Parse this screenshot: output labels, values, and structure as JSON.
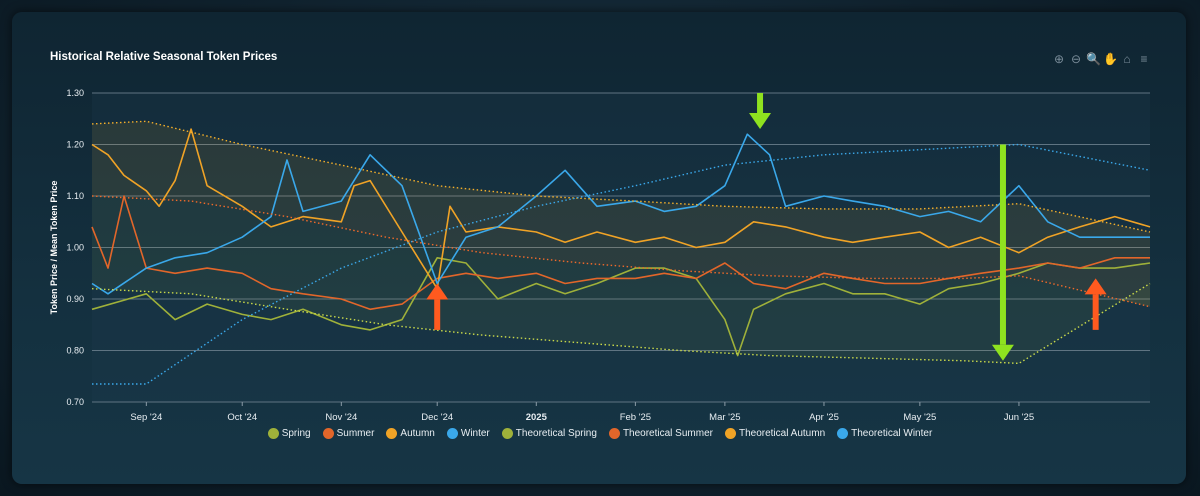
{
  "title": "Historical Relative Seasonal Token Prices",
  "toolbar": {
    "icons": [
      "zoom-in-icon",
      "zoom-out-icon",
      "zoom-select-icon",
      "pan-hand-icon",
      "home-reset-icon",
      "menu-icon"
    ],
    "glyphs": [
      "⊕",
      "⊖",
      "🔍",
      "✋",
      "⌂",
      "≡"
    ]
  },
  "chart_data": {
    "type": "line",
    "title": "Historical Relative Seasonal Token Prices",
    "xlabel": "",
    "ylabel": "Token Price / Mean Token Price",
    "ylim": [
      0.7,
      1.3
    ],
    "y_ticks": [
      "0.70",
      "0.80",
      "0.90",
      "1.00",
      "1.10",
      "1.20",
      "1.30"
    ],
    "x_range": [
      "2024-08-15",
      "2025-07-12"
    ],
    "x_ticks": [
      {
        "label": "Sep '24",
        "date": "2024-09-01",
        "bold": false
      },
      {
        "label": "Oct '24",
        "date": "2024-10-01",
        "bold": false
      },
      {
        "label": "Nov '24",
        "date": "2024-11-01",
        "bold": false
      },
      {
        "label": "Dec '24",
        "date": "2024-12-01",
        "bold": false
      },
      {
        "label": "2025",
        "date": "2025-01-01",
        "bold": true
      },
      {
        "label": "Feb '25",
        "date": "2025-02-01",
        "bold": false
      },
      {
        "label": "Mar '25",
        "date": "2025-03-01",
        "bold": false
      },
      {
        "label": "Apr '25",
        "date": "2025-04-01",
        "bold": false
      },
      {
        "label": "May '25",
        "date": "2025-05-01",
        "bold": false
      },
      {
        "label": "Jun '25",
        "date": "2025-06-01",
        "bold": false
      }
    ],
    "grid": true,
    "legend_position": "bottom",
    "series": [
      {
        "name": "Spring",
        "color": "#9fb13a",
        "style": "solid",
        "points": [
          [
            "2024-08-15",
            0.88
          ],
          [
            "2024-09-01",
            0.91
          ],
          [
            "2024-09-10",
            0.86
          ],
          [
            "2024-09-20",
            0.89
          ],
          [
            "2024-10-01",
            0.87
          ],
          [
            "2024-10-10",
            0.86
          ],
          [
            "2024-10-20",
            0.88
          ],
          [
            "2024-11-01",
            0.85
          ],
          [
            "2024-11-10",
            0.84
          ],
          [
            "2024-11-20",
            0.86
          ],
          [
            "2024-12-01",
            0.98
          ],
          [
            "2024-12-10",
            0.97
          ],
          [
            "2024-12-20",
            0.9
          ],
          [
            "2025-01-01",
            0.93
          ],
          [
            "2025-01-10",
            0.91
          ],
          [
            "2025-01-20",
            0.93
          ],
          [
            "2025-02-01",
            0.96
          ],
          [
            "2025-02-10",
            0.96
          ],
          [
            "2025-02-20",
            0.94
          ],
          [
            "2025-03-01",
            0.86
          ],
          [
            "2025-03-05",
            0.79
          ],
          [
            "2025-03-10",
            0.88
          ],
          [
            "2025-03-20",
            0.91
          ],
          [
            "2025-04-01",
            0.93
          ],
          [
            "2025-04-10",
            0.91
          ],
          [
            "2025-04-20",
            0.91
          ],
          [
            "2025-05-01",
            0.89
          ],
          [
            "2025-05-10",
            0.92
          ],
          [
            "2025-05-20",
            0.93
          ],
          [
            "2025-06-01",
            0.95
          ],
          [
            "2025-06-10",
            0.97
          ],
          [
            "2025-06-20",
            0.96
          ],
          [
            "2025-07-01",
            0.96
          ],
          [
            "2025-07-12",
            0.97
          ]
        ]
      },
      {
        "name": "Summer",
        "color": "#e2662a",
        "style": "solid",
        "points": [
          [
            "2024-08-15",
            1.04
          ],
          [
            "2024-08-20",
            0.96
          ],
          [
            "2024-08-25",
            1.1
          ],
          [
            "2024-09-01",
            0.96
          ],
          [
            "2024-09-10",
            0.95
          ],
          [
            "2024-09-20",
            0.96
          ],
          [
            "2024-10-01",
            0.95
          ],
          [
            "2024-10-10",
            0.92
          ],
          [
            "2024-10-20",
            0.91
          ],
          [
            "2024-11-01",
            0.9
          ],
          [
            "2024-11-10",
            0.88
          ],
          [
            "2024-11-20",
            0.89
          ],
          [
            "2024-12-01",
            0.94
          ],
          [
            "2024-12-10",
            0.95
          ],
          [
            "2024-12-20",
            0.94
          ],
          [
            "2025-01-01",
            0.95
          ],
          [
            "2025-01-10",
            0.93
          ],
          [
            "2025-01-20",
            0.94
          ],
          [
            "2025-02-01",
            0.94
          ],
          [
            "2025-02-10",
            0.95
          ],
          [
            "2025-02-20",
            0.94
          ],
          [
            "2025-03-01",
            0.97
          ],
          [
            "2025-03-10",
            0.93
          ],
          [
            "2025-03-20",
            0.92
          ],
          [
            "2025-04-01",
            0.95
          ],
          [
            "2025-04-10",
            0.94
          ],
          [
            "2025-04-20",
            0.93
          ],
          [
            "2025-05-01",
            0.93
          ],
          [
            "2025-05-10",
            0.94
          ],
          [
            "2025-05-20",
            0.95
          ],
          [
            "2025-06-01",
            0.96
          ],
          [
            "2025-06-10",
            0.97
          ],
          [
            "2025-06-20",
            0.96
          ],
          [
            "2025-07-01",
            0.98
          ],
          [
            "2025-07-12",
            0.98
          ]
        ]
      },
      {
        "name": "Autumn",
        "color": "#f0a326",
        "style": "solid",
        "points": [
          [
            "2024-08-15",
            1.2
          ],
          [
            "2024-08-20",
            1.18
          ],
          [
            "2024-08-25",
            1.14
          ],
          [
            "2024-09-01",
            1.11
          ],
          [
            "2024-09-05",
            1.08
          ],
          [
            "2024-09-10",
            1.13
          ],
          [
            "2024-09-15",
            1.23
          ],
          [
            "2024-09-20",
            1.12
          ],
          [
            "2024-10-01",
            1.08
          ],
          [
            "2024-10-10",
            1.04
          ],
          [
            "2024-10-20",
            1.06
          ],
          [
            "2024-11-01",
            1.05
          ],
          [
            "2024-11-05",
            1.12
          ],
          [
            "2024-11-10",
            1.13
          ],
          [
            "2024-11-20",
            1.03
          ],
          [
            "2024-12-01",
            0.92
          ],
          [
            "2024-12-05",
            1.08
          ],
          [
            "2024-12-10",
            1.03
          ],
          [
            "2024-12-20",
            1.04
          ],
          [
            "2025-01-01",
            1.03
          ],
          [
            "2025-01-10",
            1.01
          ],
          [
            "2025-01-20",
            1.03
          ],
          [
            "2025-02-01",
            1.01
          ],
          [
            "2025-02-10",
            1.02
          ],
          [
            "2025-02-20",
            1.0
          ],
          [
            "2025-03-01",
            1.01
          ],
          [
            "2025-03-10",
            1.05
          ],
          [
            "2025-03-20",
            1.04
          ],
          [
            "2025-04-01",
            1.02
          ],
          [
            "2025-04-10",
            1.01
          ],
          [
            "2025-04-20",
            1.02
          ],
          [
            "2025-05-01",
            1.03
          ],
          [
            "2025-05-10",
            1.0
          ],
          [
            "2025-05-20",
            1.02
          ],
          [
            "2025-06-01",
            0.99
          ],
          [
            "2025-06-10",
            1.02
          ],
          [
            "2025-06-20",
            1.04
          ],
          [
            "2025-07-01",
            1.06
          ],
          [
            "2025-07-12",
            1.04
          ]
        ]
      },
      {
        "name": "Winter",
        "color": "#3aa8ea",
        "style": "solid",
        "points": [
          [
            "2024-08-15",
            0.93
          ],
          [
            "2024-08-20",
            0.91
          ],
          [
            "2024-09-01",
            0.96
          ],
          [
            "2024-09-10",
            0.98
          ],
          [
            "2024-09-20",
            0.99
          ],
          [
            "2024-10-01",
            1.02
          ],
          [
            "2024-10-10",
            1.06
          ],
          [
            "2024-10-15",
            1.17
          ],
          [
            "2024-10-20",
            1.07
          ],
          [
            "2024-11-01",
            1.09
          ],
          [
            "2024-11-10",
            1.18
          ],
          [
            "2024-11-20",
            1.12
          ],
          [
            "2024-12-01",
            0.93
          ],
          [
            "2024-12-10",
            1.02
          ],
          [
            "2024-12-20",
            1.04
          ],
          [
            "2025-01-01",
            1.1
          ],
          [
            "2025-01-10",
            1.15
          ],
          [
            "2025-01-20",
            1.08
          ],
          [
            "2025-02-01",
            1.09
          ],
          [
            "2025-02-10",
            1.07
          ],
          [
            "2025-02-20",
            1.08
          ],
          [
            "2025-03-01",
            1.12
          ],
          [
            "2025-03-08",
            1.22
          ],
          [
            "2025-03-15",
            1.18
          ],
          [
            "2025-03-20",
            1.08
          ],
          [
            "2025-04-01",
            1.1
          ],
          [
            "2025-04-10",
            1.09
          ],
          [
            "2025-04-20",
            1.08
          ],
          [
            "2025-05-01",
            1.06
          ],
          [
            "2025-05-10",
            1.07
          ],
          [
            "2025-05-20",
            1.05
          ],
          [
            "2025-06-01",
            1.12
          ],
          [
            "2025-06-10",
            1.05
          ],
          [
            "2025-06-20",
            1.02
          ],
          [
            "2025-07-01",
            1.02
          ],
          [
            "2025-07-12",
            1.02
          ]
        ]
      },
      {
        "name": "Theoretical Spring",
        "color": "#c9d94a",
        "style": "dotted",
        "points": [
          [
            "2024-08-15",
            0.92
          ],
          [
            "2024-09-15",
            0.91
          ],
          [
            "2024-10-15",
            0.88
          ],
          [
            "2024-11-15",
            0.85
          ],
          [
            "2024-12-15",
            0.83
          ],
          [
            "2025-01-15",
            0.815
          ],
          [
            "2025-02-15",
            0.8
          ],
          [
            "2025-03-15",
            0.79
          ],
          [
            "2025-04-15",
            0.785
          ],
          [
            "2025-05-15",
            0.78
          ],
          [
            "2025-06-01",
            0.775
          ],
          [
            "2025-07-12",
            0.93
          ]
        ]
      },
      {
        "name": "Theoretical Summer",
        "color": "#f06a2a",
        "style": "dotted",
        "points": [
          [
            "2024-08-15",
            1.1
          ],
          [
            "2024-09-15",
            1.09
          ],
          [
            "2024-10-15",
            1.06
          ],
          [
            "2024-11-15",
            1.02
          ],
          [
            "2024-12-15",
            0.99
          ],
          [
            "2025-01-15",
            0.97
          ],
          [
            "2025-02-15",
            0.955
          ],
          [
            "2025-03-15",
            0.945
          ],
          [
            "2025-04-15",
            0.94
          ],
          [
            "2025-05-15",
            0.94
          ],
          [
            "2025-06-01",
            0.945
          ],
          [
            "2025-07-12",
            0.885
          ]
        ]
      },
      {
        "name": "Theoretical Autumn",
        "color": "#f5b02a",
        "style": "dotted",
        "points": [
          [
            "2024-08-15",
            1.24
          ],
          [
            "2024-09-01",
            1.245
          ],
          [
            "2024-10-01",
            1.2
          ],
          [
            "2024-11-01",
            1.16
          ],
          [
            "2024-12-01",
            1.12
          ],
          [
            "2025-01-01",
            1.1
          ],
          [
            "2025-02-01",
            1.09
          ],
          [
            "2025-03-01",
            1.08
          ],
          [
            "2025-04-01",
            1.075
          ],
          [
            "2025-05-01",
            1.075
          ],
          [
            "2025-06-01",
            1.085
          ],
          [
            "2025-07-12",
            1.03
          ]
        ]
      },
      {
        "name": "Theoretical Winter",
        "color": "#3aa8ea",
        "style": "dotted",
        "points": [
          [
            "2024-08-15",
            0.735
          ],
          [
            "2024-09-01",
            0.735
          ],
          [
            "2024-10-01",
            0.86
          ],
          [
            "2024-11-01",
            0.96
          ],
          [
            "2024-12-01",
            1.03
          ],
          [
            "2025-01-01",
            1.08
          ],
          [
            "2025-02-01",
            1.12
          ],
          [
            "2025-03-01",
            1.16
          ],
          [
            "2025-04-01",
            1.18
          ],
          [
            "2025-05-01",
            1.19
          ],
          [
            "2025-06-01",
            1.2
          ],
          [
            "2025-07-12",
            1.15
          ]
        ]
      }
    ],
    "annotations": [
      {
        "shape": "arrow-up",
        "color": "#ff5a1f",
        "date": "2024-12-01",
        "y_from": 0.84,
        "y_to": 0.93
      },
      {
        "shape": "arrow-down",
        "color": "#8fe21f",
        "date": "2025-03-12",
        "y_from": 1.3,
        "y_to": 1.23
      },
      {
        "shape": "arrow-down-long",
        "color": "#8fe21f",
        "date": "2025-05-27",
        "y_from": 1.2,
        "y_to": 0.78
      },
      {
        "shape": "arrow-up",
        "color": "#ff5a1f",
        "date": "2025-06-25",
        "y_from": 0.84,
        "y_to": 0.94
      }
    ]
  },
  "legend": [
    {
      "label": "Spring",
      "color": "#9fb13a"
    },
    {
      "label": "Summer",
      "color": "#e2662a"
    },
    {
      "label": "Autumn",
      "color": "#f0a326"
    },
    {
      "label": "Winter",
      "color": "#3aa8ea"
    },
    {
      "label": "Theoretical Spring",
      "color": "#9fb13a"
    },
    {
      "label": "Theoretical Summer",
      "color": "#e2662a"
    },
    {
      "label": "Theoretical Autumn",
      "color": "#f0a326"
    },
    {
      "label": "Theoretical Winter",
      "color": "#3aa8ea"
    }
  ]
}
